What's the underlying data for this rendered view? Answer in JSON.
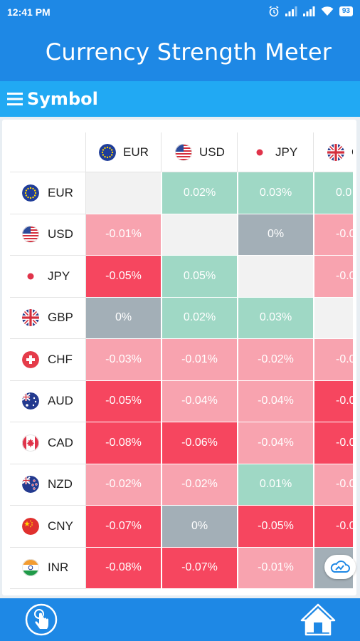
{
  "status": {
    "time": "12:41 PM",
    "battery": "93",
    "icons": [
      "alarm-icon",
      "signal-icon",
      "signal-icon",
      "wifi-icon",
      "battery-icon"
    ]
  },
  "header": {
    "title": "Currency Strength Meter"
  },
  "section": {
    "title": "Symbol",
    "icon": "menu-icon"
  },
  "columns": [
    "EUR",
    "USD",
    "JPY",
    "GBP"
  ],
  "rows": [
    {
      "code": "EUR",
      "cells": [
        {
          "text": "",
          "status": "self"
        },
        {
          "text": "0.02%",
          "status": "up"
        },
        {
          "text": "0.03%",
          "status": "up"
        },
        {
          "text": "0.0",
          "status": "up"
        }
      ]
    },
    {
      "code": "USD",
      "cells": [
        {
          "text": "-0.01%",
          "status": "down"
        },
        {
          "text": "",
          "status": "self"
        },
        {
          "text": "0%",
          "status": "flat"
        },
        {
          "text": "-0.0",
          "status": "down"
        }
      ]
    },
    {
      "code": "JPY",
      "cells": [
        {
          "text": "-0.05%",
          "status": "strong-down"
        },
        {
          "text": "0.05%",
          "status": "up"
        },
        {
          "text": "",
          "status": "self"
        },
        {
          "text": "-0.0",
          "status": "down"
        }
      ]
    },
    {
      "code": "GBP",
      "cells": [
        {
          "text": "0%",
          "status": "flat"
        },
        {
          "text": "0.02%",
          "status": "up"
        },
        {
          "text": "0.03%",
          "status": "up"
        },
        {
          "text": "",
          "status": "self"
        }
      ]
    },
    {
      "code": "CHF",
      "cells": [
        {
          "text": "-0.03%",
          "status": "down"
        },
        {
          "text": "-0.01%",
          "status": "down"
        },
        {
          "text": "-0.02%",
          "status": "down"
        },
        {
          "text": "-0.0",
          "status": "down"
        }
      ]
    },
    {
      "code": "AUD",
      "cells": [
        {
          "text": "-0.05%",
          "status": "strong-down"
        },
        {
          "text": "-0.04%",
          "status": "down"
        },
        {
          "text": "-0.04%",
          "status": "down"
        },
        {
          "text": "-0.0",
          "status": "strong-down"
        }
      ]
    },
    {
      "code": "CAD",
      "cells": [
        {
          "text": "-0.08%",
          "status": "strong-down"
        },
        {
          "text": "-0.06%",
          "status": "strong-down"
        },
        {
          "text": "-0.04%",
          "status": "down"
        },
        {
          "text": "-0.0",
          "status": "strong-down"
        }
      ]
    },
    {
      "code": "NZD",
      "cells": [
        {
          "text": "-0.02%",
          "status": "down"
        },
        {
          "text": "-0.02%",
          "status": "down"
        },
        {
          "text": "0.01%",
          "status": "up"
        },
        {
          "text": "-0.0",
          "status": "down"
        }
      ]
    },
    {
      "code": "CNY",
      "cells": [
        {
          "text": "-0.07%",
          "status": "strong-down"
        },
        {
          "text": "0%",
          "status": "flat"
        },
        {
          "text": "-0.05%",
          "status": "strong-down"
        },
        {
          "text": "-0.0",
          "status": "strong-down"
        }
      ]
    },
    {
      "code": "INR",
      "cells": [
        {
          "text": "-0.08%",
          "status": "strong-down"
        },
        {
          "text": "-0.07%",
          "status": "strong-down"
        },
        {
          "text": "-0.01%",
          "status": "down"
        },
        {
          "text": "",
          "status": "flat"
        }
      ]
    }
  ],
  "colors": {
    "self": "#f2f2f2",
    "up": "#9fd8c5",
    "down": "#f8a3af",
    "strong-down": "#f6465f",
    "flat": "#a3afb7",
    "app_bar": "#1e88e5",
    "section_bar": "#21a9f3"
  },
  "bottom": {
    "left_icon": "touch-icon",
    "right_icon": "home-icon",
    "floating_icon": "cloud-icon"
  }
}
